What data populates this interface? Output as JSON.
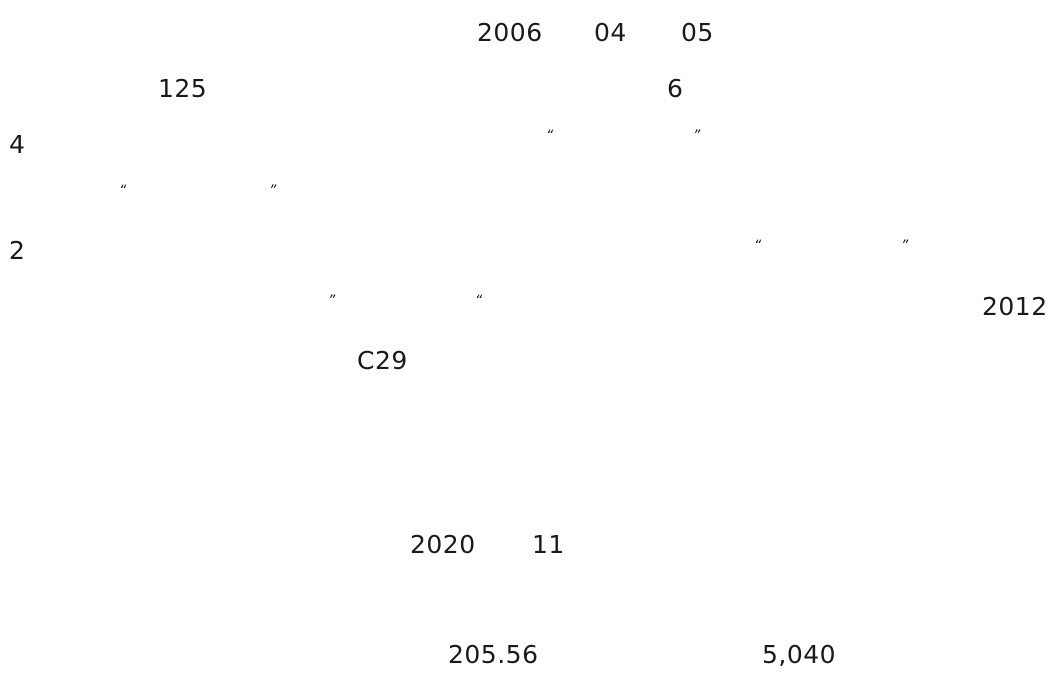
{
  "document": {
    "line1": {
      "year": "2006",
      "month": "04",
      "day": "05"
    },
    "line2": {
      "num_a": "125",
      "num_b": "6"
    },
    "line3": {
      "num": "4",
      "q_open": "“",
      "q_close": "”"
    },
    "line4": {
      "q_open": "“",
      "q_close": "”"
    },
    "line5": {
      "num": "2",
      "q_open": "“",
      "q_close": "”"
    },
    "line6": {
      "q_open": "”",
      "q_close": "“",
      "year": "2012"
    },
    "line7": {
      "code": "C29"
    },
    "line8": {
      "year": "2020",
      "month": "11"
    },
    "line9": {
      "value_a": "205.56",
      "value_b": "5,040"
    }
  }
}
